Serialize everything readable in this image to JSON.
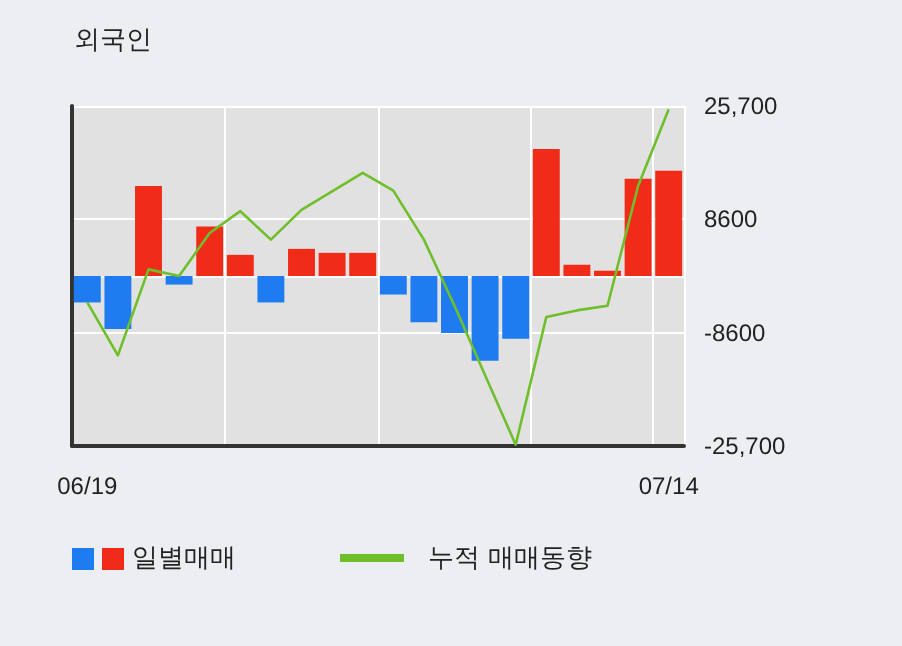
{
  "chart_data": {
    "type": "bar",
    "title": "외국인",
    "categories": [
      "06/19",
      null,
      null,
      null,
      null,
      null,
      null,
      null,
      null,
      null,
      null,
      null,
      null,
      null,
      null,
      null,
      null,
      null,
      null,
      "07/14"
    ],
    "series": [
      {
        "name": "일별매매",
        "values": [
          -4000,
          -8000,
          13600,
          -1300,
          7500,
          3200,
          -4000,
          4100,
          3500,
          3500,
          -2800,
          -7000,
          -8600,
          -12800,
          -9500,
          19200,
          1700,
          800,
          14700,
          15900
        ],
        "colors": [
          "#1f7cf0",
          "#1f7cf0",
          "#f02c18",
          "#1f7cf0",
          "#f02c18",
          "#f02c18",
          "#1f7cf0",
          "#f02c18",
          "#f02c18",
          "#f02c18",
          "#1f7cf0",
          "#1f7cf0",
          "#1f7cf0",
          "#1f7cf0",
          "#1f7cf0",
          "#f02c18",
          "#f02c18",
          "#f02c18",
          "#f02c18",
          "#f02c18"
        ]
      },
      {
        "name": "누적 매매동향",
        "type": "line",
        "color": "#6fbf2a",
        "values": [
          -4000,
          -12000,
          1000,
          0,
          6500,
          9800,
          5500,
          10000,
          12800,
          15600,
          12900,
          5500,
          -4500,
          -15000,
          -25500,
          -6200,
          -5200,
          -4500,
          13600,
          25200
        ]
      }
    ],
    "ylim": [
      -25700,
      25700
    ],
    "yticks": [
      {
        "value": -25700,
        "label": "-25,700"
      },
      -8600,
      {
        "value": 0,
        "label": null
      },
      8600,
      {
        "value": 25700,
        "label": "25,700"
      }
    ],
    "grid": true,
    "legend": "bottom left",
    "marker": "none"
  }
}
